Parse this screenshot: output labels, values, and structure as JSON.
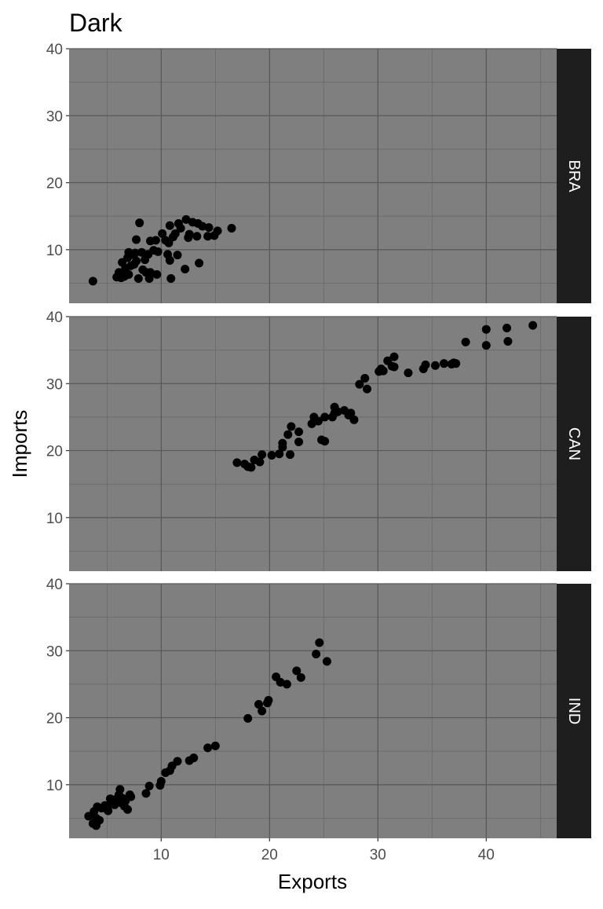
{
  "chart_data": {
    "type": "scatter",
    "title": "Dark",
    "xlabel": "Exports",
    "ylabel": "Imports",
    "xlim": [
      1.5,
      46.5
    ],
    "ylim": [
      2,
      40
    ],
    "x_ticks": [
      10,
      20,
      30,
      40
    ],
    "y_ticks": [
      10,
      20,
      30,
      40
    ],
    "grid": true,
    "facets": [
      {
        "label": "BRA",
        "points": [
          [
            3.7,
            5.3
          ],
          [
            5.9,
            5.9
          ],
          [
            6.1,
            6.6
          ],
          [
            6.3,
            5.8
          ],
          [
            6.4,
            8.1
          ],
          [
            6.6,
            6.0
          ],
          [
            6.7,
            7.2
          ],
          [
            6.9,
            8.8
          ],
          [
            7.0,
            6.3
          ],
          [
            7.0,
            9.6
          ],
          [
            7.2,
            7.6
          ],
          [
            7.3,
            9.3
          ],
          [
            7.5,
            7.8
          ],
          [
            7.6,
            9.5
          ],
          [
            7.7,
            11.5
          ],
          [
            7.7,
            8.3
          ],
          [
            7.9,
            5.7
          ],
          [
            8.0,
            14.0
          ],
          [
            8.2,
            9.6
          ],
          [
            8.3,
            7.0
          ],
          [
            8.5,
            8.5
          ],
          [
            8.6,
            6.6
          ],
          [
            8.8,
            9.3
          ],
          [
            8.9,
            5.7
          ],
          [
            9.0,
            11.3
          ],
          [
            9.0,
            6.6
          ],
          [
            9.3,
            9.9
          ],
          [
            9.5,
            11.4
          ],
          [
            9.6,
            6.3
          ],
          [
            9.7,
            9.7
          ],
          [
            10.1,
            12.4
          ],
          [
            10.4,
            11.4
          ],
          [
            10.6,
            9.3
          ],
          [
            10.7,
            11.0
          ],
          [
            10.8,
            13.6
          ],
          [
            10.8,
            8.4
          ],
          [
            10.9,
            5.7
          ],
          [
            11.1,
            11.9
          ],
          [
            11.3,
            12.4
          ],
          [
            11.5,
            9.2
          ],
          [
            11.6,
            13.9
          ],
          [
            11.8,
            13.2
          ],
          [
            12.2,
            7.1
          ],
          [
            12.3,
            14.5
          ],
          [
            12.5,
            11.8
          ],
          [
            12.6,
            12.3
          ],
          [
            12.9,
            14.1
          ],
          [
            13.3,
            12.0
          ],
          [
            13.4,
            13.9
          ],
          [
            13.5,
            8.0
          ],
          [
            13.8,
            13.5
          ],
          [
            14.3,
            12.0
          ],
          [
            14.4,
            13.3
          ],
          [
            14.9,
            12.1
          ],
          [
            15.2,
            12.8
          ],
          [
            16.5,
            13.2
          ]
        ]
      },
      {
        "label": "CAN",
        "points": [
          [
            17.0,
            18.2
          ],
          [
            17.7,
            18.0
          ],
          [
            18.0,
            17.6
          ],
          [
            18.3,
            17.5
          ],
          [
            18.6,
            18.6
          ],
          [
            19.1,
            18.3
          ],
          [
            19.3,
            19.4
          ],
          [
            20.2,
            19.3
          ],
          [
            20.9,
            19.5
          ],
          [
            21.2,
            20.5
          ],
          [
            21.2,
            21.1
          ],
          [
            21.7,
            22.4
          ],
          [
            21.9,
            19.4
          ],
          [
            22.0,
            23.6
          ],
          [
            22.7,
            22.8
          ],
          [
            22.7,
            21.3
          ],
          [
            23.9,
            24.0
          ],
          [
            24.1,
            25.0
          ],
          [
            24.5,
            24.4
          ],
          [
            24.8,
            21.6
          ],
          [
            25.1,
            25.0
          ],
          [
            25.1,
            21.4
          ],
          [
            25.8,
            25.0
          ],
          [
            26.0,
            26.5
          ],
          [
            26.0,
            25.6
          ],
          [
            26.3,
            25.8
          ],
          [
            26.9,
            26.0
          ],
          [
            27.3,
            25.3
          ],
          [
            27.5,
            25.6
          ],
          [
            27.8,
            24.6
          ],
          [
            28.3,
            29.9
          ],
          [
            28.8,
            30.8
          ],
          [
            29.0,
            29.2
          ],
          [
            30.1,
            31.8
          ],
          [
            30.3,
            32.2
          ],
          [
            30.5,
            31.9
          ],
          [
            30.9,
            33.4
          ],
          [
            31.3,
            32.6
          ],
          [
            31.5,
            34.0
          ],
          [
            31.5,
            32.5
          ],
          [
            32.8,
            31.6
          ],
          [
            34.2,
            32.2
          ],
          [
            34.4,
            32.8
          ],
          [
            35.3,
            32.7
          ],
          [
            36.1,
            33.0
          ],
          [
            36.8,
            32.9
          ],
          [
            37.0,
            33.1
          ],
          [
            37.2,
            33.0
          ],
          [
            38.1,
            36.2
          ],
          [
            40.0,
            38.1
          ],
          [
            40.0,
            35.7
          ],
          [
            41.9,
            38.3
          ],
          [
            42.0,
            36.3
          ],
          [
            44.3,
            38.7
          ]
        ]
      },
      {
        "label": "IND",
        "points": [
          [
            3.3,
            5.3
          ],
          [
            3.7,
            4.2
          ],
          [
            3.8,
            6.0
          ],
          [
            4.0,
            5.0
          ],
          [
            4.0,
            3.9
          ],
          [
            4.1,
            6.7
          ],
          [
            4.3,
            4.7
          ],
          [
            4.5,
            6.5
          ],
          [
            4.8,
            6.9
          ],
          [
            5.1,
            6.1
          ],
          [
            5.3,
            7.9
          ],
          [
            5.4,
            7.2
          ],
          [
            5.7,
            7.0
          ],
          [
            5.9,
            7.9
          ],
          [
            6.1,
            8.5
          ],
          [
            6.2,
            9.3
          ],
          [
            6.3,
            7.3
          ],
          [
            6.4,
            8.0
          ],
          [
            6.6,
            6.8
          ],
          [
            6.7,
            7.6
          ],
          [
            6.9,
            6.3
          ],
          [
            7.1,
            8.5
          ],
          [
            7.2,
            8.2
          ],
          [
            8.6,
            8.7
          ],
          [
            8.9,
            9.8
          ],
          [
            9.9,
            9.9
          ],
          [
            10.0,
            10.5
          ],
          [
            10.4,
            11.8
          ],
          [
            10.8,
            12.1
          ],
          [
            11.0,
            12.8
          ],
          [
            11.5,
            13.5
          ],
          [
            12.6,
            13.6
          ],
          [
            13.0,
            14.0
          ],
          [
            14.3,
            15.5
          ],
          [
            15.0,
            15.8
          ],
          [
            18.0,
            19.9
          ],
          [
            19.0,
            22.0
          ],
          [
            19.3,
            21.0
          ],
          [
            19.8,
            22.2
          ],
          [
            19.9,
            22.6
          ],
          [
            20.6,
            26.1
          ],
          [
            21.0,
            25.3
          ],
          [
            21.6,
            25.0
          ],
          [
            22.5,
            27.0
          ],
          [
            22.9,
            26.0
          ],
          [
            24.3,
            29.5
          ],
          [
            24.6,
            31.2
          ],
          [
            25.3,
            28.4
          ]
        ]
      }
    ]
  }
}
